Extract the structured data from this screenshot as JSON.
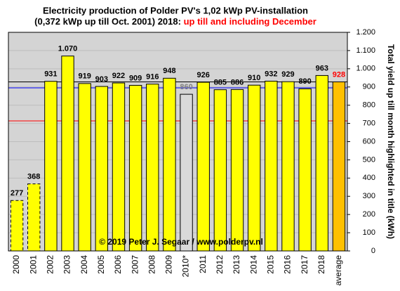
{
  "chart_data": {
    "type": "bar",
    "title": "Electricity production of Polder PV's 1,02 kWp PV-installation",
    "subtitle": "(0,372 kWp up till Oct. 2001) 2018: ",
    "subtitle_highlight": "up till and including December",
    "subtitle_highlight_color": "#ff0000",
    "y_axis_label": "Total yield up till month highlighted in title (kWh)",
    "annotation": "© 2019 Peter J. Segaar / www.polderpv.nl",
    "categories": [
      "2000",
      "2001",
      "2002",
      "2003",
      "2004",
      "2005",
      "2006",
      "2007",
      "2008",
      "2009",
      "2010*",
      "2011",
      "2012",
      "2013",
      "2014",
      "2015",
      "2016",
      "2017",
      "2018",
      "average"
    ],
    "values": [
      277,
      368,
      931,
      1070,
      919,
      903,
      922,
      909,
      916,
      948,
      860,
      926,
      885,
      886,
      910,
      932,
      929,
      890,
      963,
      928
    ],
    "value_labels": [
      "277",
      "368",
      "931",
      "1.070",
      "919",
      "903",
      "922",
      "909",
      "916",
      "948",
      "860",
      "926",
      "885",
      "886",
      "910",
      "932",
      "929",
      "890",
      "963",
      "928"
    ],
    "colors": [
      "#ffff00",
      "#ffff00",
      "#ffff00",
      "#ffff00",
      "#ffff00",
      "#ffff00",
      "#ffff00",
      "#ffff00",
      "#ffff00",
      "#ffff00",
      "#d9d9d9",
      "#ffff00",
      "#ffff00",
      "#ffff00",
      "#ffff00",
      "#ffff00",
      "#ffff00",
      "#ffff00",
      "#ffff00",
      "#ffc000"
    ],
    "label_colors": [
      "#000000",
      "#000000",
      "#000000",
      "#000000",
      "#000000",
      "#000000",
      "#000000",
      "#000000",
      "#000000",
      "#000000",
      "#808080",
      "#000000",
      "#000000",
      "#000000",
      "#000000",
      "#000000",
      "#000000",
      "#000000",
      "#000000",
      "#ff0000"
    ],
    "dashed_outline": [
      true,
      true,
      false,
      false,
      false,
      false,
      false,
      false,
      false,
      false,
      false,
      false,
      false,
      false,
      false,
      false,
      false,
      false,
      false,
      false
    ],
    "reference_lines": [
      {
        "value": 928,
        "color": "#000000"
      },
      {
        "value": 895,
        "color": "#0000ff"
      },
      {
        "value": 714,
        "color": "#ff0000"
      }
    ],
    "ylim": [
      0,
      1200
    ],
    "yticks": [
      0,
      100,
      200,
      300,
      400,
      500,
      600,
      700,
      800,
      900,
      {
        "value": 1000,
        "label": "1.000"
      },
      {
        "value": 1100,
        "label": "1.100"
      },
      {
        "value": 1200,
        "label": "1.200"
      }
    ],
    "grid": true
  }
}
